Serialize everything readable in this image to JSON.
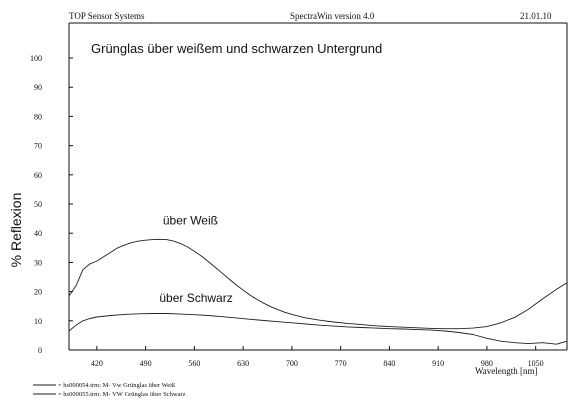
{
  "header": {
    "company": "TOP Sensor Systems",
    "software": "SpectraWin version 4.0",
    "date": "21.01.10"
  },
  "chart_data": {
    "type": "line",
    "title": "Grünglas über weißem und schwarzen Untergrund",
    "xlabel": "Wavelength [nm]",
    "ylabel": "% Reflexion",
    "xlim": [
      380,
      1095
    ],
    "ylim": [
      0,
      110
    ],
    "xticks": [
      420,
      490,
      560,
      630,
      700,
      770,
      840,
      910,
      980,
      1050
    ],
    "yticks": [
      0,
      10,
      20,
      30,
      40,
      50,
      60,
      70,
      80,
      90,
      100
    ],
    "grid": false,
    "series": [
      {
        "name": "über Weiß",
        "x": [
          380,
          390,
          400,
          410,
          420,
          430,
          440,
          450,
          460,
          470,
          480,
          490,
          500,
          510,
          520,
          530,
          540,
          550,
          560,
          570,
          580,
          590,
          600,
          610,
          620,
          630,
          640,
          650,
          660,
          670,
          680,
          690,
          700,
          720,
          740,
          760,
          780,
          800,
          820,
          840,
          860,
          880,
          900,
          920,
          940,
          960,
          980,
          1000,
          1020,
          1040,
          1060,
          1080,
          1095
        ],
        "y": [
          18.5,
          22.0,
          27.5,
          29.5,
          30.5,
          32.0,
          33.5,
          35.0,
          36.0,
          36.8,
          37.3,
          37.6,
          37.8,
          37.9,
          37.8,
          37.3,
          36.5,
          35.3,
          33.8,
          32.2,
          30.3,
          28.3,
          26.3,
          24.3,
          22.3,
          20.5,
          18.8,
          17.3,
          16.0,
          14.8,
          13.8,
          12.9,
          12.2,
          11.0,
          10.2,
          9.6,
          9.1,
          8.7,
          8.3,
          8.0,
          7.8,
          7.6,
          7.4,
          7.3,
          7.3,
          7.5,
          8.0,
          9.3,
          11.2,
          14.0,
          17.5,
          20.8,
          23.0
        ]
      },
      {
        "name": "über Schwarz",
        "x": [
          380,
          390,
          400,
          410,
          420,
          440,
          460,
          480,
          500,
          520,
          540,
          560,
          580,
          600,
          620,
          640,
          660,
          680,
          700,
          720,
          740,
          760,
          780,
          800,
          820,
          840,
          860,
          880,
          900,
          920,
          940,
          960,
          980,
          1000,
          1020,
          1040,
          1060,
          1080,
          1095
        ],
        "y": [
          6.5,
          8.5,
          10.0,
          10.8,
          11.3,
          11.8,
          12.2,
          12.4,
          12.5,
          12.5,
          12.3,
          12.1,
          11.8,
          11.4,
          11.0,
          10.5,
          10.1,
          9.7,
          9.3,
          8.9,
          8.5,
          8.2,
          7.9,
          7.7,
          7.5,
          7.3,
          7.2,
          7.0,
          6.8,
          6.5,
          6.0,
          5.3,
          4.0,
          3.0,
          2.5,
          2.2,
          2.5,
          2.0,
          3.0
        ]
      }
    ],
    "annotations": [
      {
        "text": "über Weiß",
        "x": 565,
        "y": 43
      },
      {
        "text": "über Schwarz",
        "x": 560,
        "y": 16.5
      }
    ],
    "legend": {
      "position": "bottom-left",
      "items": [
        "= hs000054.trm:  M- Vw Grünglas über Weiß",
        "= hs000055.trm:  M- VW Grünglas über Schwarz"
      ]
    }
  },
  "style": {
    "line_color": "#222222",
    "axis_color": "#111111",
    "background": "#ffffff"
  }
}
